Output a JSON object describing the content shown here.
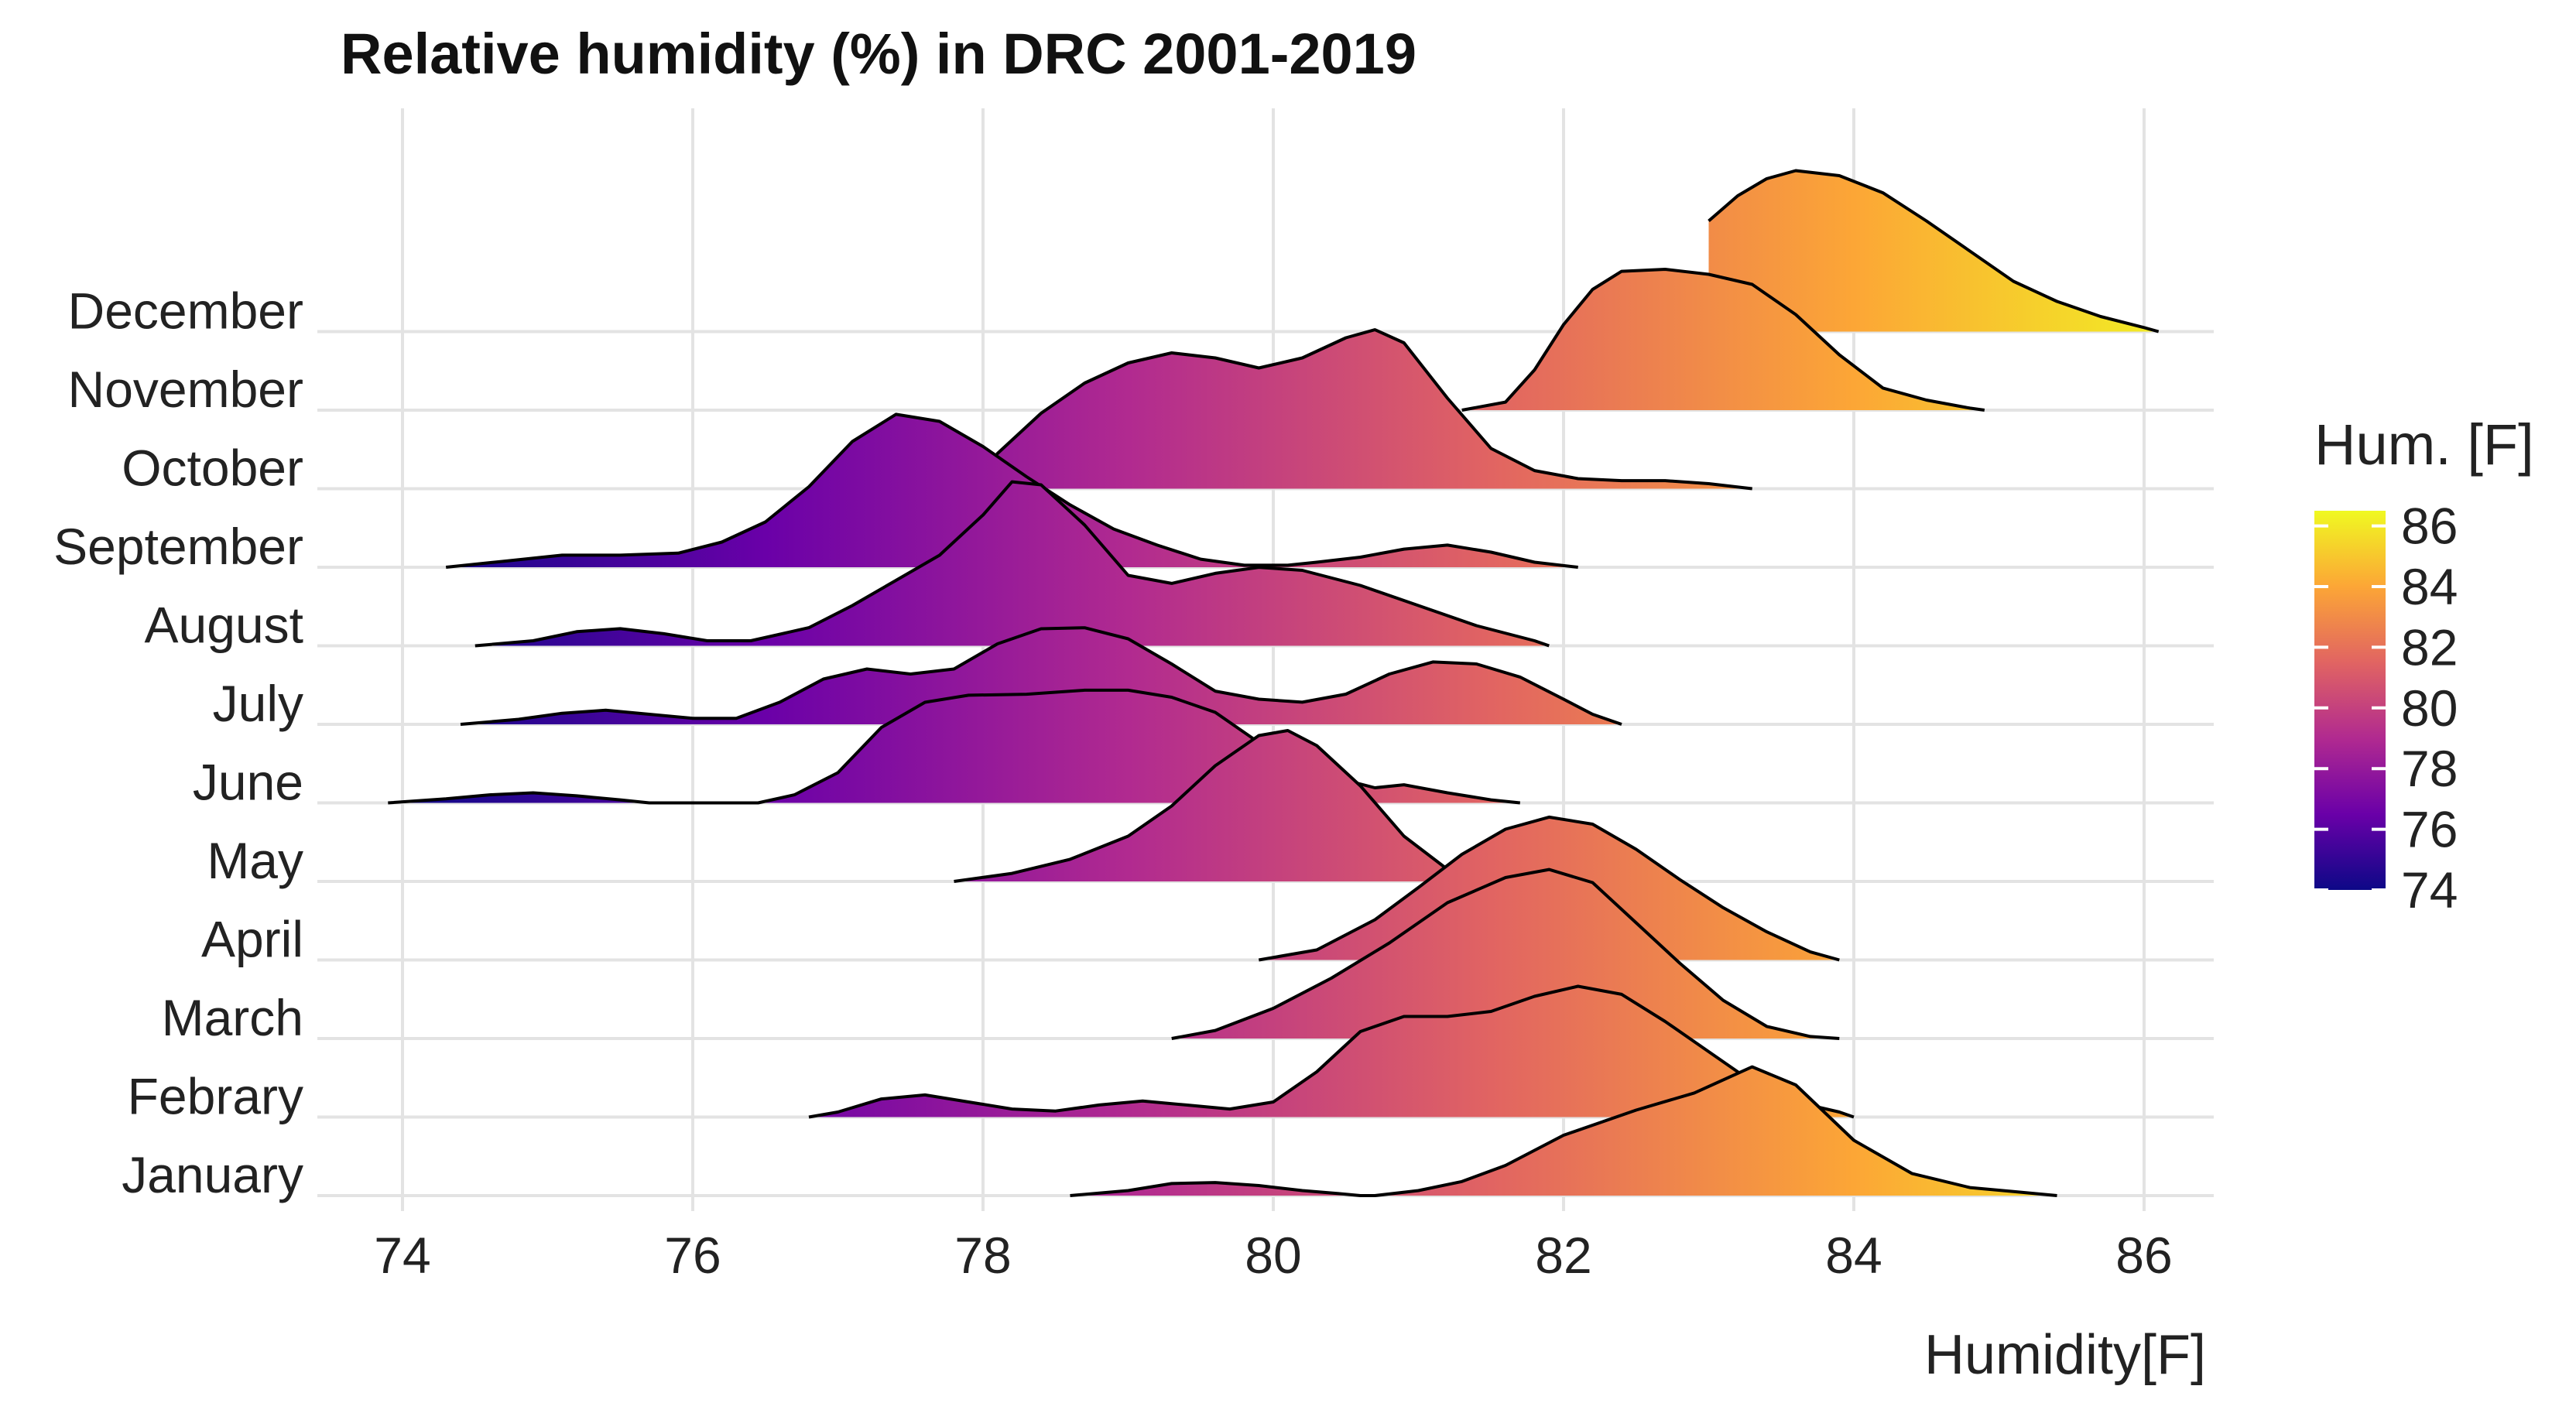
{
  "chart_data": {
    "type": "ridgeline",
    "title": "Relative humidity (%) in DRC 2001-2019",
    "xlabel": "Humidity[F]",
    "ylabel": "",
    "xlim": [
      73.5,
      86.5
    ],
    "xticks": [
      74,
      76,
      78,
      80,
      82,
      84,
      86
    ],
    "categories": [
      "January",
      "Febrary",
      "March",
      "April",
      "May",
      "June",
      "July",
      "August",
      "September",
      "October",
      "November",
      "December"
    ],
    "legend": {
      "title": "Hum. [F]",
      "position": "right",
      "ticks": [
        86,
        84,
        82,
        80,
        78,
        76,
        74
      ],
      "range": [
        74,
        86.5
      ]
    },
    "colormap": [
      "#0d0887",
      "#6a00a8",
      "#b12a90",
      "#e16462",
      "#fca636",
      "#f0f921"
    ],
    "series": [
      {
        "name": "January",
        "density": [
          [
            78.6,
            0
          ],
          [
            79.0,
            0.05
          ],
          [
            79.3,
            0.12
          ],
          [
            79.6,
            0.13
          ],
          [
            79.9,
            0.1
          ],
          [
            80.2,
            0.05
          ],
          [
            80.45,
            0.02
          ],
          [
            80.6,
            0
          ],
          [
            80.7,
            0
          ],
          [
            81.0,
            0.05
          ],
          [
            81.3,
            0.14
          ],
          [
            81.6,
            0.3
          ],
          [
            82.0,
            0.6
          ],
          [
            82.5,
            0.85
          ],
          [
            82.9,
            1.02
          ],
          [
            83.3,
            1.28
          ],
          [
            83.6,
            1.1
          ],
          [
            84.0,
            0.55
          ],
          [
            84.4,
            0.22
          ],
          [
            84.8,
            0.08
          ],
          [
            85.1,
            0.04
          ],
          [
            85.4,
            0
          ]
        ]
      },
      {
        "name": "Febrary",
        "density": [
          [
            76.8,
            0
          ],
          [
            77.0,
            0.05
          ],
          [
            77.3,
            0.18
          ],
          [
            77.6,
            0.22
          ],
          [
            77.9,
            0.15
          ],
          [
            78.2,
            0.08
          ],
          [
            78.5,
            0.06
          ],
          [
            78.8,
            0.12
          ],
          [
            79.1,
            0.16
          ],
          [
            79.4,
            0.12
          ],
          [
            79.7,
            0.08
          ],
          [
            80.0,
            0.15
          ],
          [
            80.3,
            0.45
          ],
          [
            80.6,
            0.85
          ],
          [
            80.9,
            1.0
          ],
          [
            81.2,
            1.0
          ],
          [
            81.5,
            1.05
          ],
          [
            81.8,
            1.2
          ],
          [
            82.1,
            1.3
          ],
          [
            82.4,
            1.22
          ],
          [
            82.7,
            0.95
          ],
          [
            83.0,
            0.65
          ],
          [
            83.3,
            0.35
          ],
          [
            83.6,
            0.15
          ],
          [
            83.9,
            0.05
          ],
          [
            84.0,
            0
          ]
        ]
      },
      {
        "name": "March",
        "density": [
          [
            79.3,
            0
          ],
          [
            79.6,
            0.08
          ],
          [
            80.0,
            0.3
          ],
          [
            80.4,
            0.6
          ],
          [
            80.8,
            0.95
          ],
          [
            81.2,
            1.35
          ],
          [
            81.6,
            1.6
          ],
          [
            81.9,
            1.68
          ],
          [
            82.2,
            1.55
          ],
          [
            82.5,
            1.15
          ],
          [
            82.8,
            0.75
          ],
          [
            83.1,
            0.38
          ],
          [
            83.4,
            0.12
          ],
          [
            83.7,
            0.02
          ],
          [
            83.9,
            0
          ]
        ]
      },
      {
        "name": "April",
        "density": [
          [
            79.9,
            0
          ],
          [
            80.3,
            0.1
          ],
          [
            80.7,
            0.4
          ],
          [
            81.0,
            0.72
          ],
          [
            81.3,
            1.05
          ],
          [
            81.6,
            1.3
          ],
          [
            81.9,
            1.42
          ],
          [
            82.2,
            1.35
          ],
          [
            82.5,
            1.1
          ],
          [
            82.8,
            0.8
          ],
          [
            83.1,
            0.52
          ],
          [
            83.4,
            0.28
          ],
          [
            83.7,
            0.08
          ],
          [
            83.9,
            0
          ]
        ]
      },
      {
        "name": "May",
        "density": [
          [
            77.8,
            0
          ],
          [
            78.2,
            0.08
          ],
          [
            78.6,
            0.22
          ],
          [
            79.0,
            0.45
          ],
          [
            79.3,
            0.75
          ],
          [
            79.6,
            1.15
          ],
          [
            79.9,
            1.45
          ],
          [
            80.1,
            1.5
          ],
          [
            80.3,
            1.35
          ],
          [
            80.6,
            0.95
          ],
          [
            80.9,
            0.45
          ],
          [
            81.2,
            0.12
          ],
          [
            81.4,
            0
          ]
        ]
      },
      {
        "name": "June",
        "density": [
          [
            73.9,
            0
          ],
          [
            74.3,
            0.04
          ],
          [
            74.6,
            0.08
          ],
          [
            74.9,
            0.1
          ],
          [
            75.2,
            0.07
          ],
          [
            75.5,
            0.03
          ],
          [
            75.7,
            0
          ],
          [
            76.45,
            0
          ],
          [
            76.7,
            0.08
          ],
          [
            77.0,
            0.3
          ],
          [
            77.3,
            0.75
          ],
          [
            77.6,
            1.0
          ],
          [
            77.9,
            1.07
          ],
          [
            78.3,
            1.08
          ],
          [
            78.7,
            1.12
          ],
          [
            79.0,
            1.12
          ],
          [
            79.3,
            1.05
          ],
          [
            79.6,
            0.9
          ],
          [
            79.9,
            0.6
          ],
          [
            80.3,
            0.3
          ],
          [
            80.7,
            0.15
          ],
          [
            80.9,
            0.18
          ],
          [
            81.2,
            0.1
          ],
          [
            81.5,
            0.03
          ],
          [
            81.7,
            0
          ]
        ]
      },
      {
        "name": "July",
        "density": [
          [
            74.4,
            0
          ],
          [
            74.8,
            0.05
          ],
          [
            75.1,
            0.11
          ],
          [
            75.4,
            0.14
          ],
          [
            75.7,
            0.1
          ],
          [
            76.0,
            0.06
          ],
          [
            76.3,
            0.06
          ],
          [
            76.6,
            0.22
          ],
          [
            76.9,
            0.45
          ],
          [
            77.2,
            0.55
          ],
          [
            77.5,
            0.5
          ],
          [
            77.8,
            0.55
          ],
          [
            78.1,
            0.8
          ],
          [
            78.4,
            0.95
          ],
          [
            78.7,
            0.96
          ],
          [
            79.0,
            0.85
          ],
          [
            79.3,
            0.6
          ],
          [
            79.6,
            0.33
          ],
          [
            79.9,
            0.25
          ],
          [
            80.2,
            0.22
          ],
          [
            80.5,
            0.3
          ],
          [
            80.8,
            0.5
          ],
          [
            81.1,
            0.62
          ],
          [
            81.4,
            0.6
          ],
          [
            81.7,
            0.47
          ],
          [
            82.0,
            0.25
          ],
          [
            82.2,
            0.1
          ],
          [
            82.4,
            0
          ]
        ]
      },
      {
        "name": "August",
        "density": [
          [
            74.5,
            0
          ],
          [
            74.9,
            0.05
          ],
          [
            75.2,
            0.14
          ],
          [
            75.5,
            0.17
          ],
          [
            75.8,
            0.12
          ],
          [
            76.1,
            0.05
          ],
          [
            76.4,
            0.05
          ],
          [
            76.8,
            0.18
          ],
          [
            77.1,
            0.4
          ],
          [
            77.4,
            0.65
          ],
          [
            77.7,
            0.9
          ],
          [
            78.0,
            1.3
          ],
          [
            78.2,
            1.63
          ],
          [
            78.4,
            1.6
          ],
          [
            78.7,
            1.2
          ],
          [
            79.0,
            0.7
          ],
          [
            79.3,
            0.62
          ],
          [
            79.6,
            0.72
          ],
          [
            79.9,
            0.78
          ],
          [
            80.2,
            0.75
          ],
          [
            80.6,
            0.6
          ],
          [
            81.0,
            0.4
          ],
          [
            81.4,
            0.2
          ],
          [
            81.8,
            0.05
          ],
          [
            81.9,
            0
          ]
        ]
      },
      {
        "name": "September",
        "density": [
          [
            74.3,
            0
          ],
          [
            74.7,
            0.06
          ],
          [
            75.1,
            0.12
          ],
          [
            75.5,
            0.12
          ],
          [
            75.9,
            0.14
          ],
          [
            76.2,
            0.25
          ],
          [
            76.5,
            0.45
          ],
          [
            76.8,
            0.8
          ],
          [
            77.1,
            1.25
          ],
          [
            77.4,
            1.52
          ],
          [
            77.7,
            1.45
          ],
          [
            78.0,
            1.2
          ],
          [
            78.3,
            0.9
          ],
          [
            78.6,
            0.62
          ],
          [
            78.9,
            0.38
          ],
          [
            79.2,
            0.22
          ],
          [
            79.5,
            0.08
          ],
          [
            79.8,
            0.02
          ],
          [
            80.1,
            0.02
          ],
          [
            80.3,
            0.05
          ],
          [
            80.6,
            0.1
          ],
          [
            80.9,
            0.18
          ],
          [
            81.2,
            0.22
          ],
          [
            81.5,
            0.15
          ],
          [
            81.8,
            0.05
          ],
          [
            82.1,
            0
          ]
        ]
      },
      {
        "name": "October",
        "density": [
          [
            77.9,
            0
          ],
          [
            78.1,
            0.35
          ],
          [
            78.4,
            0.75
          ],
          [
            78.7,
            1.05
          ],
          [
            79.0,
            1.25
          ],
          [
            79.3,
            1.35
          ],
          [
            79.6,
            1.3
          ],
          [
            79.9,
            1.2
          ],
          [
            80.2,
            1.3
          ],
          [
            80.5,
            1.5
          ],
          [
            80.7,
            1.58
          ],
          [
            80.9,
            1.45
          ],
          [
            81.2,
            0.9
          ],
          [
            81.5,
            0.4
          ],
          [
            81.8,
            0.18
          ],
          [
            82.1,
            0.1
          ],
          [
            82.4,
            0.08
          ],
          [
            82.7,
            0.08
          ],
          [
            83.0,
            0.05
          ],
          [
            83.3,
            0
          ]
        ]
      },
      {
        "name": "November",
        "density": [
          [
            81.3,
            0
          ],
          [
            81.6,
            0.08
          ],
          [
            81.8,
            0.4
          ],
          [
            82.0,
            0.85
          ],
          [
            82.2,
            1.2
          ],
          [
            82.4,
            1.38
          ],
          [
            82.7,
            1.4
          ],
          [
            83.0,
            1.35
          ],
          [
            83.3,
            1.25
          ],
          [
            83.6,
            0.95
          ],
          [
            83.9,
            0.55
          ],
          [
            84.2,
            0.22
          ],
          [
            84.5,
            0.1
          ],
          [
            84.8,
            0.02
          ],
          [
            84.9,
            0
          ]
        ]
      },
      {
        "name": "December",
        "density": [
          [
            83.0,
            1.1
          ],
          [
            83.2,
            1.35
          ],
          [
            83.4,
            1.52
          ],
          [
            83.6,
            1.6
          ],
          [
            83.9,
            1.55
          ],
          [
            84.2,
            1.38
          ],
          [
            84.5,
            1.1
          ],
          [
            84.8,
            0.8
          ],
          [
            85.1,
            0.5
          ],
          [
            85.4,
            0.3
          ],
          [
            85.7,
            0.15
          ],
          [
            86.0,
            0.04
          ],
          [
            86.1,
            0
          ]
        ]
      }
    ]
  }
}
